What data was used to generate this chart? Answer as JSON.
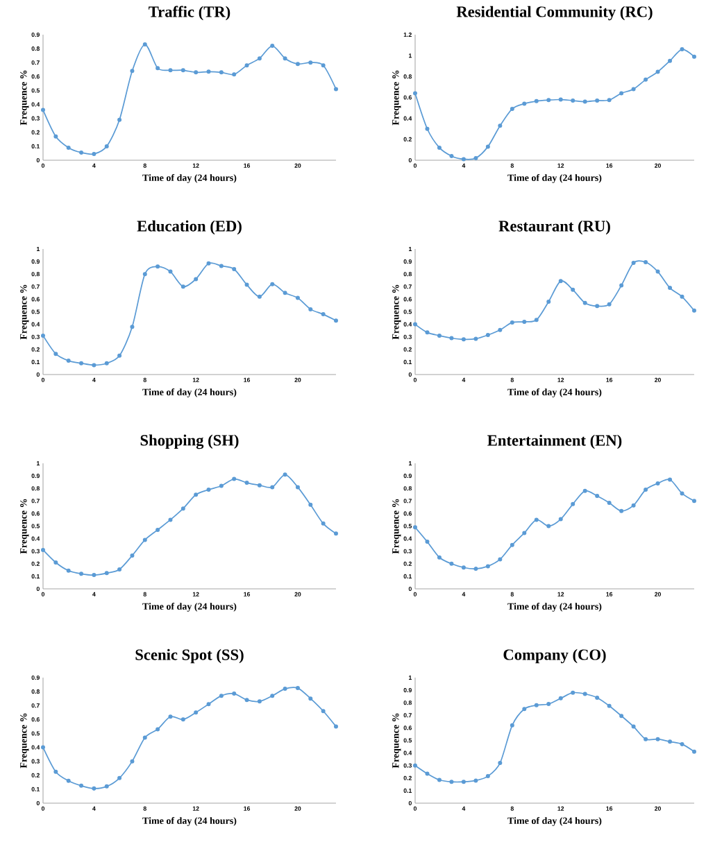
{
  "chart_data": [
    {
      "type": "line",
      "title": "Traffic (TR)",
      "xlabel": "Time of day (24 hours)",
      "ylabel": "Frequence %",
      "x": [
        0,
        1,
        2,
        3,
        4,
        5,
        6,
        7,
        8,
        9,
        10,
        11,
        12,
        13,
        14,
        15,
        16,
        17,
        18,
        19,
        20,
        21,
        22,
        23
      ],
      "xlim": [
        0,
        23
      ],
      "xticks": [
        0,
        4,
        8,
        12,
        16,
        20
      ],
      "ylim": [
        0,
        0.9
      ],
      "yticks": [
        0,
        0.1,
        0.2,
        0.3,
        0.4,
        0.5,
        0.6,
        0.7,
        0.8,
        0.9
      ],
      "marker": "circle",
      "color": "#5b9bd5",
      "values": [
        0.36,
        0.17,
        0.09,
        0.055,
        0.045,
        0.1,
        0.29,
        0.64,
        0.83,
        0.66,
        0.645,
        0.645,
        0.63,
        0.635,
        0.63,
        0.615,
        0.68,
        0.73,
        0.82,
        0.73,
        0.69,
        0.7,
        0.68,
        0.51
      ]
    },
    {
      "type": "line",
      "title": "Residential Community (RC)",
      "xlabel": "Time of day (24 hours)",
      "ylabel": "Frequence %",
      "x": [
        0,
        1,
        2,
        3,
        4,
        5,
        6,
        7,
        8,
        9,
        10,
        11,
        12,
        13,
        14,
        15,
        16,
        17,
        18,
        19,
        20,
        21,
        22,
        23
      ],
      "xlim": [
        0,
        23
      ],
      "xticks": [
        0,
        4,
        8,
        12,
        16,
        20
      ],
      "ylim": [
        0,
        1.2
      ],
      "yticks": [
        0,
        0.2,
        0.4,
        0.6,
        0.8,
        1,
        1.2
      ],
      "marker": "circle",
      "color": "#5b9bd5",
      "values": [
        0.64,
        0.3,
        0.12,
        0.04,
        0.01,
        0.02,
        0.13,
        0.33,
        0.49,
        0.54,
        0.565,
        0.575,
        0.58,
        0.57,
        0.56,
        0.57,
        0.575,
        0.64,
        0.68,
        0.77,
        0.845,
        0.95,
        1.06,
        0.99
      ]
    },
    {
      "type": "line",
      "title": "Education (ED)",
      "xlabel": "Time of day (24 hours)",
      "ylabel": "Frequence %",
      "x": [
        0,
        1,
        2,
        3,
        4,
        5,
        6,
        7,
        8,
        9,
        10,
        11,
        12,
        13,
        14,
        15,
        16,
        17,
        18,
        19,
        20,
        21,
        22,
        23
      ],
      "xlim": [
        0,
        23
      ],
      "xticks": [
        0,
        4,
        8,
        12,
        16,
        20
      ],
      "ylim": [
        0,
        1
      ],
      "yticks": [
        0,
        0.1,
        0.2,
        0.3,
        0.4,
        0.5,
        0.6,
        0.7,
        0.8,
        0.9,
        1
      ],
      "marker": "circle",
      "color": "#5b9bd5",
      "values": [
        0.31,
        0.165,
        0.11,
        0.09,
        0.075,
        0.09,
        0.15,
        0.38,
        0.8,
        0.86,
        0.82,
        0.7,
        0.76,
        0.885,
        0.865,
        0.84,
        0.715,
        0.62,
        0.72,
        0.65,
        0.61,
        0.52,
        0.48,
        0.43
      ]
    },
    {
      "type": "line",
      "title": "Restaurant (RU)",
      "xlabel": "Time of day (24 hours)",
      "ylabel": "Frequence %",
      "x": [
        0,
        1,
        2,
        3,
        4,
        5,
        6,
        7,
        8,
        9,
        10,
        11,
        12,
        13,
        14,
        15,
        16,
        17,
        18,
        19,
        20,
        21,
        22,
        23
      ],
      "xlim": [
        0,
        23
      ],
      "xticks": [
        0,
        4,
        8,
        12,
        16,
        20
      ],
      "ylim": [
        0,
        1
      ],
      "yticks": [
        0,
        0.1,
        0.2,
        0.3,
        0.4,
        0.5,
        0.6,
        0.7,
        0.8,
        0.9,
        1
      ],
      "marker": "circle",
      "color": "#5b9bd5",
      "values": [
        0.4,
        0.335,
        0.31,
        0.29,
        0.28,
        0.285,
        0.315,
        0.355,
        0.415,
        0.42,
        0.435,
        0.58,
        0.745,
        0.675,
        0.57,
        0.545,
        0.56,
        0.71,
        0.89,
        0.895,
        0.82,
        0.69,
        0.62,
        0.51
      ]
    },
    {
      "type": "line",
      "title": "Shopping (SH)",
      "xlabel": "Time of day (24 hours)",
      "ylabel": "Frequence %",
      "x": [
        0,
        1,
        2,
        3,
        4,
        5,
        6,
        7,
        8,
        9,
        10,
        11,
        12,
        13,
        14,
        15,
        16,
        17,
        18,
        19,
        20,
        21,
        22,
        23
      ],
      "xlim": [
        0,
        23
      ],
      "xticks": [
        0,
        4,
        8,
        12,
        16,
        20
      ],
      "ylim": [
        0,
        1
      ],
      "yticks": [
        0,
        0.1,
        0.2,
        0.3,
        0.4,
        0.5,
        0.6,
        0.7,
        0.8,
        0.9,
        1
      ],
      "marker": "circle",
      "color": "#5b9bd5",
      "values": [
        0.31,
        0.21,
        0.145,
        0.12,
        0.11,
        0.125,
        0.155,
        0.265,
        0.39,
        0.47,
        0.55,
        0.64,
        0.75,
        0.79,
        0.82,
        0.875,
        0.845,
        0.825,
        0.81,
        0.91,
        0.81,
        0.67,
        0.52,
        0.44
      ]
    },
    {
      "type": "line",
      "title": "Entertainment (EN)",
      "xlabel": "Time of day (24 hours)",
      "ylabel": "Frequence %",
      "x": [
        0,
        1,
        2,
        3,
        4,
        5,
        6,
        7,
        8,
        9,
        10,
        11,
        12,
        13,
        14,
        15,
        16,
        17,
        18,
        19,
        20,
        21,
        22,
        23
      ],
      "xlim": [
        0,
        23
      ],
      "xticks": [
        0,
        4,
        8,
        12,
        16,
        20
      ],
      "ylim": [
        0,
        1
      ],
      "yticks": [
        0,
        0.1,
        0.2,
        0.3,
        0.4,
        0.5,
        0.6,
        0.7,
        0.8,
        0.9,
        1
      ],
      "marker": "circle",
      "color": "#5b9bd5",
      "values": [
        0.49,
        0.375,
        0.25,
        0.2,
        0.17,
        0.16,
        0.18,
        0.235,
        0.35,
        0.445,
        0.55,
        0.5,
        0.555,
        0.675,
        0.78,
        0.74,
        0.685,
        0.62,
        0.665,
        0.79,
        0.84,
        0.87,
        0.76,
        0.7
      ]
    },
    {
      "type": "line",
      "title": "Scenic Spot (SS)",
      "xlabel": "Time of day (24 hours)",
      "ylabel": "Frequence %",
      "x": [
        0,
        1,
        2,
        3,
        4,
        5,
        6,
        7,
        8,
        9,
        10,
        11,
        12,
        13,
        14,
        15,
        16,
        17,
        18,
        19,
        20,
        21,
        22,
        23
      ],
      "xlim": [
        0,
        23
      ],
      "xticks": [
        0,
        4,
        8,
        12,
        16,
        20
      ],
      "ylim": [
        0,
        0.9
      ],
      "yticks": [
        0,
        0.1,
        0.2,
        0.3,
        0.4,
        0.5,
        0.6,
        0.7,
        0.8,
        0.9
      ],
      "marker": "circle",
      "color": "#5b9bd5",
      "values": [
        0.4,
        0.225,
        0.16,
        0.125,
        0.105,
        0.12,
        0.18,
        0.3,
        0.47,
        0.53,
        0.62,
        0.6,
        0.65,
        0.71,
        0.77,
        0.785,
        0.74,
        0.73,
        0.77,
        0.82,
        0.825,
        0.75,
        0.66,
        0.55
      ]
    },
    {
      "type": "line",
      "title": "Company (CO)",
      "xlabel": "Time of day (24 hours)",
      "ylabel": "Frequence %",
      "x": [
        0,
        1,
        2,
        3,
        4,
        5,
        6,
        7,
        8,
        9,
        10,
        11,
        12,
        13,
        14,
        15,
        16,
        17,
        18,
        19,
        20,
        21,
        22,
        23
      ],
      "xlim": [
        0,
        23
      ],
      "xticks": [
        0,
        4,
        8,
        12,
        16,
        20
      ],
      "ylim": [
        0,
        1
      ],
      "yticks": [
        0,
        0.1,
        0.2,
        0.3,
        0.4,
        0.5,
        0.6,
        0.7,
        0.8,
        0.9,
        1
      ],
      "marker": "circle",
      "color": "#5b9bd5",
      "values": [
        0.3,
        0.235,
        0.185,
        0.17,
        0.17,
        0.18,
        0.215,
        0.32,
        0.62,
        0.75,
        0.78,
        0.79,
        0.835,
        0.88,
        0.87,
        0.84,
        0.775,
        0.695,
        0.61,
        0.51,
        0.51,
        0.49,
        0.47,
        0.41
      ]
    }
  ]
}
